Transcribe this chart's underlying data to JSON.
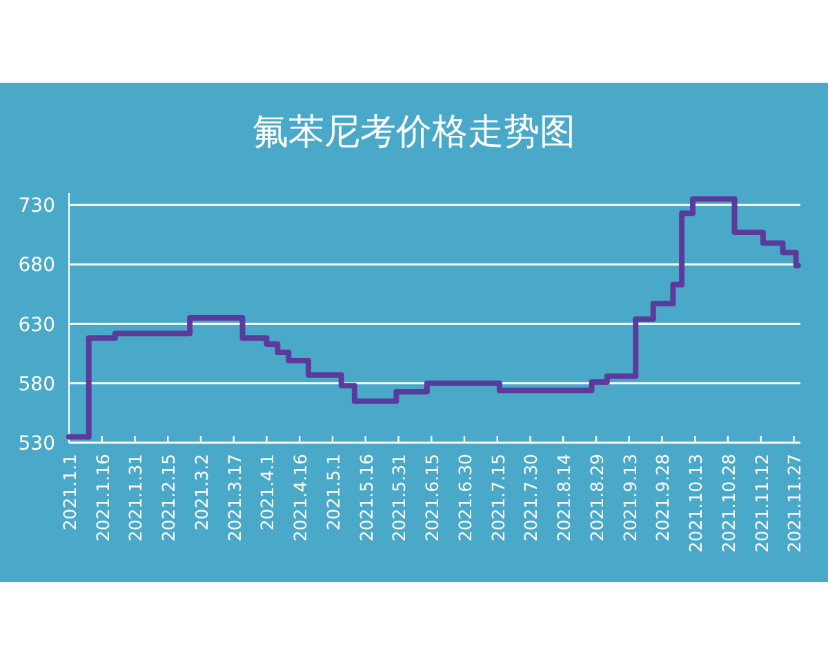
{
  "chart_data": {
    "type": "step",
    "title": "氟苯尼考价格走势图",
    "x": [
      "2021-01-01",
      "2021-01-10",
      "2021-01-22",
      "2021-02-25",
      "2021-03-21",
      "2021-04-01",
      "2021-04-06",
      "2021-04-11",
      "2021-04-20",
      "2021-05-05",
      "2021-05-11",
      "2021-05-30",
      "2021-06-13",
      "2021-07-16",
      "2021-08-27",
      "2021-09-03",
      "2021-09-16",
      "2021-09-24",
      "2021-10-03",
      "2021-10-07",
      "2021-10-12",
      "2021-10-31",
      "2021-11-13",
      "2021-11-22",
      "2021-11-28",
      "2021-11-29"
    ],
    "series": [
      {
        "color": "#5b3a9c",
        "values": [
          535,
          618,
          622,
          635,
          618,
          613,
          606,
          599,
          587,
          578,
          565,
          573,
          580,
          574,
          581,
          586,
          634,
          647,
          663,
          723,
          735,
          707,
          698,
          690,
          679,
          679
        ]
      }
    ],
    "xlim": [
      "2021-01-01",
      "2021-11-30"
    ],
    "xticks": [
      {
        "value": "2021-01-01",
        "label": "2021.1.1"
      },
      {
        "value": "2021-01-16",
        "label": "2021.1.16"
      },
      {
        "value": "2021-01-31",
        "label": "2021.1.31"
      },
      {
        "value": "2021-02-15",
        "label": "2021.2.15"
      },
      {
        "value": "2021-03-02",
        "label": "2021.3.2"
      },
      {
        "value": "2021-03-17",
        "label": "2021.3.17"
      },
      {
        "value": "2021-04-01",
        "label": "2021.4.1"
      },
      {
        "value": "2021-04-16",
        "label": "2021.4.16"
      },
      {
        "value": "2021-05-01",
        "label": "2021.5.1"
      },
      {
        "value": "2021-05-16",
        "label": "2021.5.16"
      },
      {
        "value": "2021-05-31",
        "label": "2021.5.31"
      },
      {
        "value": "2021-06-15",
        "label": "2021.6.15"
      },
      {
        "value": "2021-06-30",
        "label": "2021.6.30"
      },
      {
        "value": "2021-07-15",
        "label": "2021.7.15"
      },
      {
        "value": "2021-07-30",
        "label": "2021.7.30"
      },
      {
        "value": "2021-08-14",
        "label": "2021.8.14"
      },
      {
        "value": "2021-08-29",
        "label": "2021.8.29"
      },
      {
        "value": "2021-09-13",
        "label": "2021.9.13"
      },
      {
        "value": "2021-09-28",
        "label": "2021.9.28"
      },
      {
        "value": "2021-10-13",
        "label": "2021.10.13"
      },
      {
        "value": "2021-10-28",
        "label": "2021.10.28"
      },
      {
        "value": "2021-11-12",
        "label": "2021.11.12"
      },
      {
        "value": "2021-11-27",
        "label": "2021.11.27"
      }
    ],
    "ylim": [
      530,
      740
    ],
    "yticks": [
      530,
      580,
      630,
      680,
      730
    ],
    "grid": "y",
    "marker": "none",
    "line_style": "solid"
  }
}
